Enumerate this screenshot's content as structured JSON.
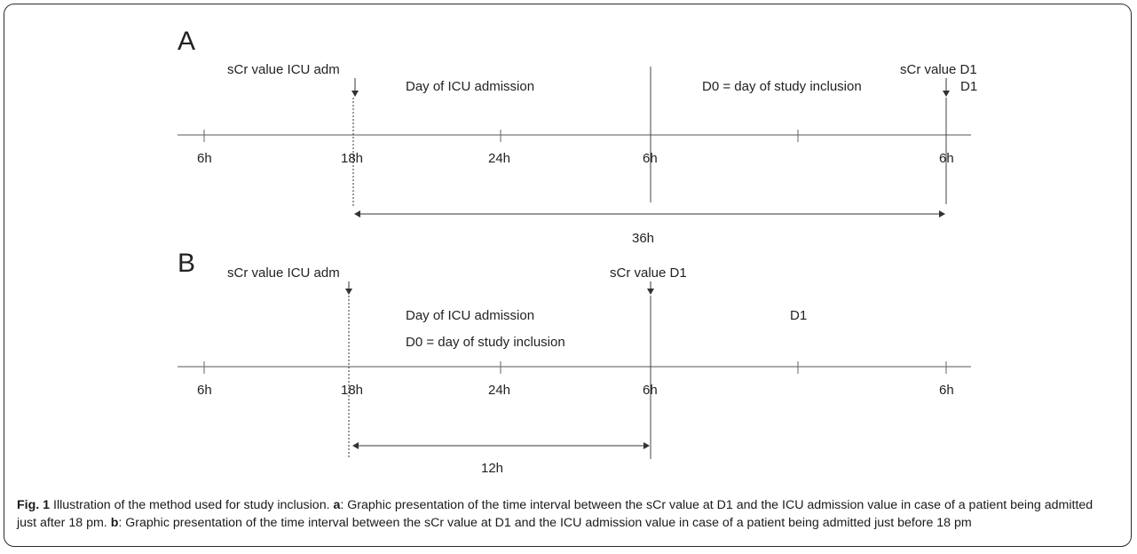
{
  "caption": {
    "label": "Fig. 1",
    "text": "Illustration of the method used for study inclusion.",
    "a_key": "a",
    "a_text": ": Graphic presentation of the time interval between the sCr value at D1 and the ICU admission value in case of a patient being admitted just after 18 pm.",
    "b_key": "b",
    "b_text": ": Graphic presentation of the time interval between the sCr value at D1 and the ICU admission value in case of a patient being admitted just before 18 pm"
  },
  "panel_a": {
    "letter": "A",
    "sample_icu_adm": "sCr value ICU adm",
    "sample_d1": "sCr value D1",
    "period_1": "Day of ICU admission",
    "period_2": "D0 = day of study inclusion",
    "period_3": "D1",
    "ticks": [
      "6h",
      "18h",
      "24h",
      "6h",
      "6h"
    ],
    "interval": "36h"
  },
  "panel_b": {
    "letter": "B",
    "sample_icu_adm": "sCr value ICU adm",
    "sample_d1": "sCr value D1",
    "period_1": "Day of ICU admission",
    "period_1b": "D0 = day of study inclusion",
    "period_2": "D1",
    "ticks": [
      "6h",
      "18h",
      "24h",
      "6h",
      "6h"
    ],
    "interval": "12h"
  }
}
